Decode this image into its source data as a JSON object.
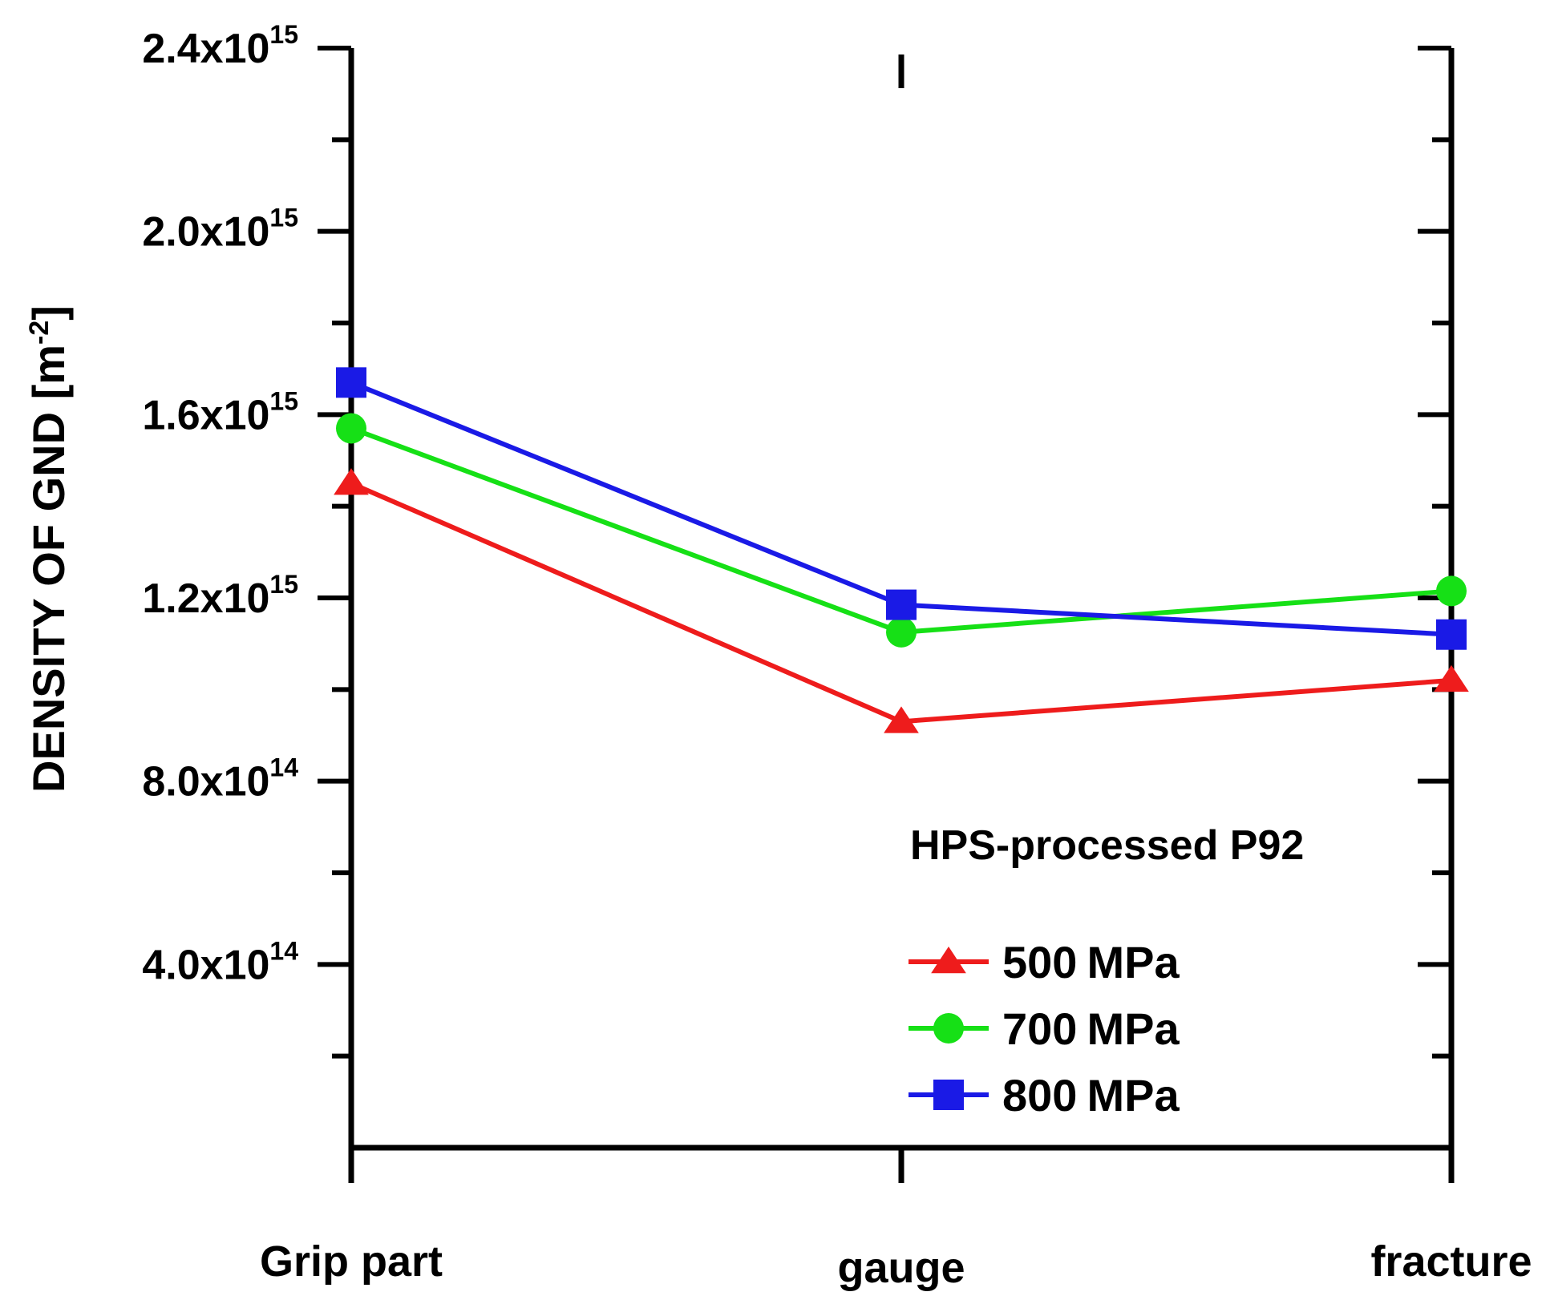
{
  "chart_data": {
    "type": "line",
    "title": "",
    "xlabel": "",
    "ylabel": "DENSITY OF GND [m",
    "ylabel_sup": "-2",
    "ylabel_close": "]",
    "annotation": "HPS-processed P92",
    "categories": [
      "Grip part",
      "gauge",
      "fracture"
    ],
    "ylim": [
      0,
      2400000000000000.0
    ],
    "y_ticks": [
      {
        "value": 400000000000000.0,
        "mantissa": "4.0x10",
        "exp": "14"
      },
      {
        "value": 800000000000000.0,
        "mantissa": "8.0x10",
        "exp": "14"
      },
      {
        "value": 1200000000000000.0,
        "mantissa": "1.2x10",
        "exp": "15"
      },
      {
        "value": 1600000000000000.0,
        "mantissa": "1.6x10",
        "exp": "15"
      },
      {
        "value": 2000000000000000.0,
        "mantissa": "2.0x10",
        "exp": "15"
      },
      {
        "value": 2400000000000000.0,
        "mantissa": "2.4x10",
        "exp": "15"
      }
    ],
    "minor_step": 200000000000000.0,
    "grid": false,
    "legend_position": "bottom-right",
    "series": [
      {
        "name": "500",
        "unit": "MPa",
        "color": "#ee1c1c",
        "marker": "triangle",
        "values": [
          1450000000000000.0,
          930000000000000.0,
          1020000000000000.0
        ]
      },
      {
        "name": "700",
        "unit": "MPa",
        "color": "#16e016",
        "marker": "circle",
        "values": [
          1570000000000000.0,
          1125000000000000.0,
          1215000000000000.0
        ]
      },
      {
        "name": "800",
        "unit": "MPa",
        "color": "#1a1ae6",
        "marker": "square",
        "values": [
          1670000000000000.0,
          1185000000000000.0,
          1120000000000000.0
        ]
      }
    ]
  }
}
